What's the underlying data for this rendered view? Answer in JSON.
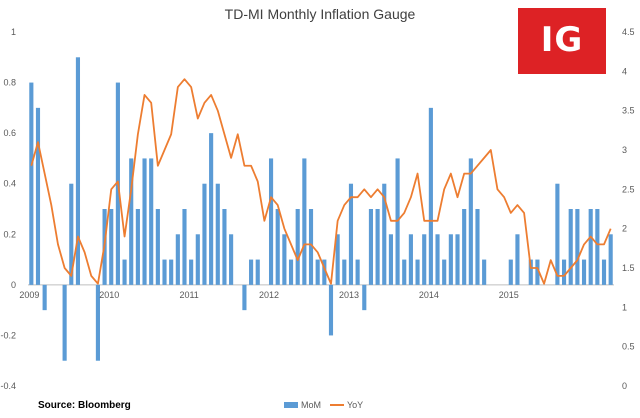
{
  "logo": {
    "text": "IG",
    "color": "#dd2225"
  },
  "source": "Source: Bloomberg",
  "chart_data": {
    "type": "bar+line",
    "title": "TD-MI Monthly Inflation Gauge",
    "x_labels": [
      "2009",
      "2010",
      "2011",
      "2012",
      "2013",
      "2014",
      "2015"
    ],
    "y_left": {
      "range": [
        -0.4,
        1
      ],
      "ticks": [
        "-0.4",
        "-0.2",
        "0",
        "0.2",
        "0.4",
        "0.6",
        "0.8",
        "1"
      ]
    },
    "y_right": {
      "range": [
        0,
        4.5
      ],
      "ticks": [
        "0",
        "0.5",
        "1",
        "1.5",
        "2",
        "2.5",
        "3",
        "3.5",
        "4",
        "4.5"
      ]
    },
    "series": [
      {
        "name": "MoM",
        "type": "bar",
        "axis": "left",
        "color": "#5b9bd5",
        "start": "2009-01",
        "values": [
          0.8,
          0.7,
          -0.1,
          0,
          0,
          -0.3,
          0.4,
          0.9,
          0,
          0,
          -0.3,
          0.3,
          0.3,
          0.8,
          0.1,
          0.5,
          0.3,
          0.5,
          0.5,
          0.3,
          0.1,
          0.1,
          0.2,
          0.3,
          0.1,
          0.2,
          0.4,
          0.6,
          0.4,
          0.3,
          0.2,
          0,
          -0.1,
          0.1,
          0.1,
          0,
          0.5,
          0.3,
          0.2,
          0.1,
          0.3,
          0.5,
          0.3,
          0.1,
          0.1,
          -0.2,
          0.2,
          0.1,
          0.4,
          0.1,
          -0.1,
          0.3,
          0.3,
          0.4,
          0.2,
          0.5,
          0.1,
          0.2,
          0.1,
          0.2,
          0.7,
          0.2,
          0.1,
          0.2,
          0.2,
          0.3,
          0.5,
          0.3,
          0.1,
          0,
          0,
          0,
          0.1,
          0.2,
          0,
          0.1,
          0.1,
          0,
          0,
          0.4,
          0.1,
          0.3,
          0.3,
          0.1,
          0.3,
          0.3,
          0.1,
          0.2
        ]
      },
      {
        "name": "YoY",
        "type": "line",
        "axis": "right",
        "color": "#ed7d31",
        "start": "2009-01",
        "values": [
          2.8,
          3.1,
          2.7,
          2.3,
          1.8,
          1.5,
          1.4,
          1.9,
          1.7,
          1.4,
          1.3,
          1.8,
          2.5,
          2.6,
          1.9,
          2.5,
          3.2,
          3.7,
          3.6,
          2.8,
          3.0,
          3.2,
          3.8,
          3.9,
          3.8,
          3.4,
          3.6,
          3.7,
          3.5,
          3.2,
          2.9,
          3.2,
          2.8,
          2.8,
          2.6,
          2.1,
          2.4,
          2.3,
          2.0,
          1.8,
          1.6,
          1.8,
          1.8,
          1.7,
          1.5,
          1.3,
          2.1,
          2.3,
          2.4,
          2.4,
          2.5,
          2.4,
          2.5,
          2.4,
          2.1,
          2.1,
          2.2,
          2.4,
          2.7,
          2.1,
          2.1,
          2.1,
          2.5,
          2.7,
          2.4,
          2.7,
          2.7,
          2.8,
          2.9,
          3.0,
          2.5,
          2.4,
          2.2,
          2.3,
          2.2,
          1.5,
          1.5,
          1.3,
          1.6,
          1.4,
          1.4,
          1.5,
          1.6,
          1.8,
          1.9,
          1.8,
          1.8,
          2.0
        ]
      }
    ],
    "legend": {
      "position": "bottom-center",
      "entries": [
        "MoM",
        "YoY"
      ]
    },
    "grid": false
  }
}
